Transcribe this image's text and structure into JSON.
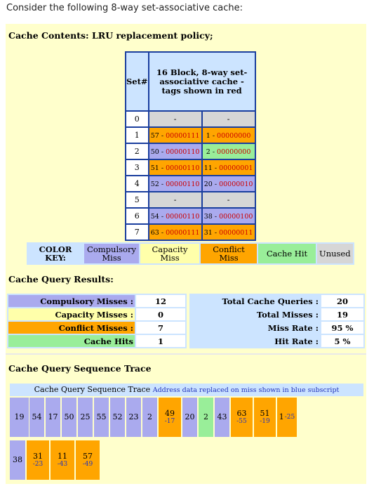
{
  "intro": "Consider the following 8-way set-associative cache:",
  "contents": {
    "title": "Cache Contents: LRU replacement policy;",
    "header_set": "Set#",
    "header_desc": "16 Block, 8-way set-associative cache - tags shown in red",
    "rows": [
      {
        "set": "0",
        "b0": {
          "addr": "",
          "tag": "-",
          "kind": "unused"
        },
        "b1": {
          "addr": "",
          "tag": "-",
          "kind": "unused"
        }
      },
      {
        "set": "1",
        "b0": {
          "addr": "57",
          "tag": "00000111",
          "kind": "conflict"
        },
        "b1": {
          "addr": "1",
          "tag": "00000000",
          "kind": "conflict"
        }
      },
      {
        "set": "2",
        "b0": {
          "addr": "50",
          "tag": "00000110",
          "kind": "compulsory"
        },
        "b1": {
          "addr": "2",
          "tag": "00000000",
          "kind": "hit"
        }
      },
      {
        "set": "3",
        "b0": {
          "addr": "51",
          "tag": "00000110",
          "kind": "conflict"
        },
        "b1": {
          "addr": "11",
          "tag": "00000001",
          "kind": "conflict"
        }
      },
      {
        "set": "4",
        "b0": {
          "addr": "52",
          "tag": "00000110",
          "kind": "compulsory"
        },
        "b1": {
          "addr": "20",
          "tag": "00000010",
          "kind": "compulsory"
        }
      },
      {
        "set": "5",
        "b0": {
          "addr": "",
          "tag": "-",
          "kind": "unused"
        },
        "b1": {
          "addr": "",
          "tag": "-",
          "kind": "unused"
        }
      },
      {
        "set": "6",
        "b0": {
          "addr": "54",
          "tag": "00000110",
          "kind": "compulsory"
        },
        "b1": {
          "addr": "38",
          "tag": "00000100",
          "kind": "compulsory"
        }
      },
      {
        "set": "7",
        "b0": {
          "addr": "63",
          "tag": "00000111",
          "kind": "conflict"
        },
        "b1": {
          "addr": "31",
          "tag": "00000011",
          "kind": "conflict"
        }
      }
    ]
  },
  "key": {
    "label": "COLOR KEY:",
    "compulsory": "Compulsory Miss",
    "capacity": "Capacity Miss",
    "conflict": "Conflict Miss",
    "hit": "Cache Hit",
    "unused": "Unused"
  },
  "results": {
    "title": "Cache Query Results:",
    "compulsory_label": "Compulsory Misses :",
    "compulsory": "12",
    "capacity_label": "Capacity Misses :",
    "capacity": "0",
    "conflict_label": "Conflict Misses :",
    "conflict": "7",
    "hits_label": "Cache Hits",
    "hits": "1",
    "total_queries_label": "Total Cache Queries :",
    "total_queries": "20",
    "total_misses_label": "Total Misses :",
    "total_misses": "19",
    "miss_rate_label": "Miss Rate :",
    "miss_rate": "95 %",
    "hit_rate_label": "Hit Rate :",
    "hit_rate": "5 %"
  },
  "trace": {
    "title": "Cache Query Sequence Trace",
    "header_main": "Cache Query Sequence Trace",
    "header_sub": "Address data replaced on miss shown in blue subscript",
    "cells": [
      {
        "addr": "19",
        "rep": "",
        "kind": "compulsory"
      },
      {
        "addr": "54",
        "rep": "",
        "kind": "compulsory"
      },
      {
        "addr": "17",
        "rep": "",
        "kind": "compulsory"
      },
      {
        "addr": "50",
        "rep": "",
        "kind": "compulsory"
      },
      {
        "addr": "25",
        "rep": "",
        "kind": "compulsory"
      },
      {
        "addr": "55",
        "rep": "",
        "kind": "compulsory"
      },
      {
        "addr": "52",
        "rep": "",
        "kind": "compulsory"
      },
      {
        "addr": "23",
        "rep": "",
        "kind": "compulsory"
      },
      {
        "addr": "2",
        "rep": "",
        "kind": "compulsory"
      },
      {
        "addr": "49",
        "rep": "-17",
        "kind": "conflict"
      },
      {
        "addr": "20",
        "rep": "",
        "kind": "compulsory"
      },
      {
        "addr": "2",
        "rep": "",
        "kind": "hit"
      },
      {
        "addr": "43",
        "rep": "",
        "kind": "compulsory"
      },
      {
        "addr": "63",
        "rep": "-55",
        "kind": "conflict"
      },
      {
        "addr": "51",
        "rep": "-19",
        "kind": "conflict"
      },
      {
        "addr": "1",
        "rep": "-25",
        "kind": "conflict"
      },
      {
        "addr": "38",
        "rep": "",
        "kind": "compulsory"
      },
      {
        "addr": "31",
        "rep": "-23",
        "kind": "conflict"
      },
      {
        "addr": "11",
        "rep": "-43",
        "kind": "conflict"
      },
      {
        "addr": "57",
        "rep": "-49",
        "kind": "conflict"
      }
    ]
  },
  "colors": {
    "compulsory": "#aaaaee",
    "capacity": "#ffffaa",
    "conflict": "#ffa500",
    "hit": "#99ee99",
    "unused": "#d6d6d6",
    "panel": "#ffffcc",
    "header": "#cce4ff",
    "tag": "#cc0000",
    "subscript": "#2233bb"
  }
}
